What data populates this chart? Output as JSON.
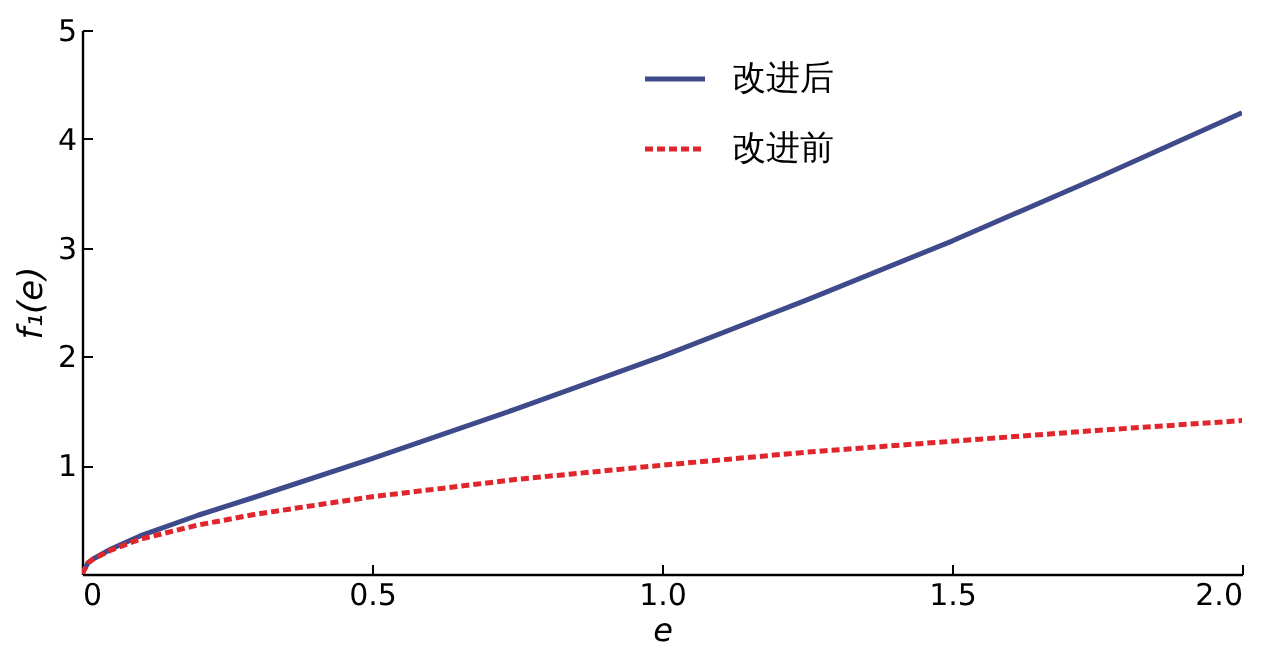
{
  "chart_data": {
    "type": "line",
    "xlabel": "e",
    "ylabel": "f₁(e)",
    "x": [
      0,
      0.01,
      0.02,
      0.05,
      0.1,
      0.2,
      0.3,
      0.5,
      0.75,
      1,
      1.25,
      1.5,
      1.75,
      2
    ],
    "series": [
      {
        "name": "改进后",
        "color": "#3f4a8a",
        "line_style": "solid",
        "values": [
          0,
          0.1,
          0.14,
          0.23,
          0.35,
          0.54,
          0.71,
          1.06,
          1.52,
          2.0,
          2.52,
          3.06,
          3.64,
          4.24
        ]
      },
      {
        "name": "改进前",
        "color": "#e0262c",
        "line_style": "dashed",
        "values": [
          0,
          0.1,
          0.14,
          0.22,
          0.32,
          0.45,
          0.55,
          0.71,
          0.87,
          1.0,
          1.12,
          1.22,
          1.32,
          1.41
        ]
      }
    ],
    "xlim": [
      0,
      2
    ],
    "xticks": [
      0,
      {
        "value": 0.5,
        "label": "0.5"
      },
      {
        "value": 1,
        "label": "1.0"
      },
      {
        "value": 1.5,
        "label": "1.5"
      },
      {
        "value": 2,
        "label": "2.0"
      }
    ],
    "ylim": [
      0,
      5
    ],
    "yticks": [
      1,
      2,
      3,
      4,
      5
    ],
    "grid": false,
    "legend": "top right",
    "marker": "none"
  }
}
